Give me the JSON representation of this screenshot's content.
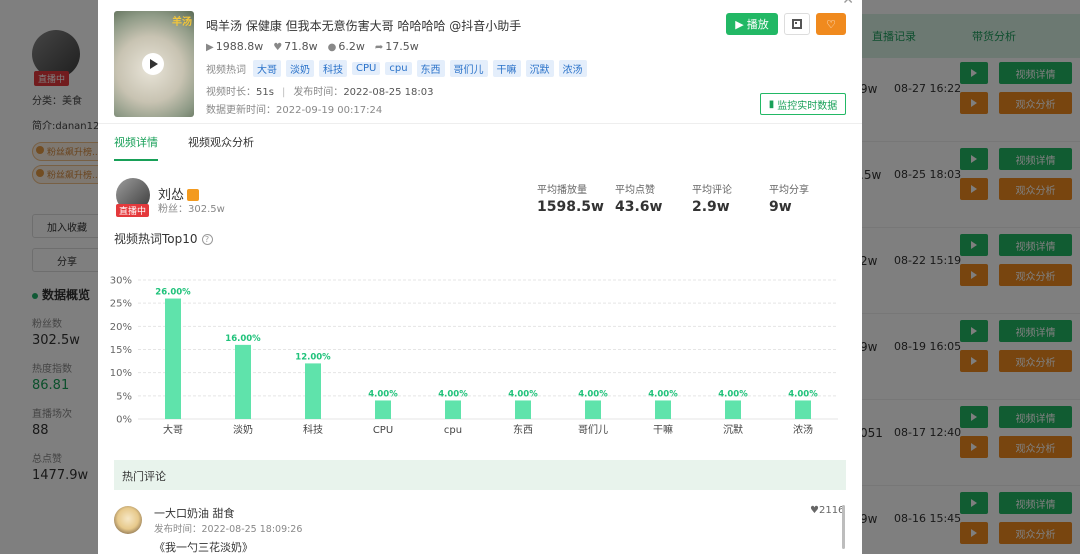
{
  "background": {
    "left": {
      "live_badge": "直播中",
      "category": "分类：美食",
      "intro": "简介:danan12",
      "fan_badges": [
        "粉丝飙升榜...",
        "粉丝飙升榜..."
      ],
      "add_fav_button": "加入收藏",
      "share_button": "分享",
      "overview_title": "数据概览",
      "stats": [
        {
          "label": "粉丝数",
          "value": "302.5w",
          "highlight": false
        },
        {
          "label": "热度指数",
          "value": "86.81",
          "highlight": true
        },
        {
          "label": "直播场次",
          "value": "88",
          "highlight": false
        },
        {
          "label": "总点赞",
          "value": "1477.9w",
          "highlight": false
        }
      ]
    },
    "right": {
      "header_tabs": [
        "直播记录",
        "带货分析"
      ],
      "detail_label": "视频详情",
      "audience_label": "观众分析",
      "rows": [
        {
          "fragment": "9w",
          "date": "08-27 16:22"
        },
        {
          "fragment": ".5w",
          "date": "08-25 18:03"
        },
        {
          "fragment": "2w",
          "date": "08-22 15:19"
        },
        {
          "fragment": "9w",
          "date": "08-19 16:05"
        },
        {
          "fragment": "051",
          "date": "08-17 12:40"
        },
        {
          "fragment": "9w",
          "date": "08-16 15:45"
        }
      ]
    }
  },
  "video": {
    "thumb_tag": "羊汤",
    "title": "喝羊汤 保健康 但我本无意伤害大哥 哈哈哈哈 @抖音小助手",
    "plays": "1988.8w",
    "likes": "71.8w",
    "comments": "6.2w",
    "shares": "17.5w",
    "tags_label": "视频热词",
    "tags": [
      "大哥",
      "淡奶",
      "科技",
      "CPU",
      "cpu",
      "东西",
      "哥们儿",
      "干嘛",
      "沉默",
      "浓汤"
    ],
    "duration_label": "视频时长：",
    "duration": "51s",
    "publish_label": "发布时间：",
    "publish_time": "2022-08-25 18:03",
    "update_label": "数据更新时间：",
    "update_time": "2022-09-19 00:17:24",
    "play_button": "播放",
    "monitor_button": "监控实时数据"
  },
  "tabs": [
    "视频详情",
    "视频观众分析"
  ],
  "author": {
    "name": "刘怂",
    "live_badge": "直播中",
    "fans_label": "粉丝：",
    "fans": "302.5w"
  },
  "averages": [
    {
      "label": "平均播放量",
      "value": "1598.5w"
    },
    {
      "label": "平均点赞",
      "value": "43.6w"
    },
    {
      "label": "平均评论",
      "value": "2.9w"
    },
    {
      "label": "平均分享",
      "value": "9w"
    }
  ],
  "chart_title": "视频热词Top10",
  "chart_data": {
    "type": "bar",
    "categories": [
      "大哥",
      "淡奶",
      "科技",
      "CPU",
      "cpu",
      "东西",
      "哥们儿",
      "干嘛",
      "沉默",
      "浓汤"
    ],
    "values": [
      26,
      16,
      12,
      4,
      4,
      4,
      4,
      4,
      4,
      4
    ],
    "value_labels": [
      "26.00%",
      "16.00%",
      "12.00%",
      "4.00%",
      "4.00%",
      "4.00%",
      "4.00%",
      "4.00%",
      "4.00%",
      "4.00%"
    ],
    "y_ticks": [
      "0%",
      "5%",
      "10%",
      "15%",
      "20%",
      "25%",
      "30%"
    ],
    "ylim": [
      0,
      30
    ],
    "grid": true,
    "bar_color": "#5fe3ab",
    "label_color": "#1fc27a"
  },
  "comments": {
    "header": "热门评论",
    "items": [
      {
        "user": "一大口奶油 甜食",
        "time": "发布时间：2022-08-25 18:09:26",
        "text": "《我一勺三花淡奶》",
        "likes": "2116"
      }
    ]
  }
}
